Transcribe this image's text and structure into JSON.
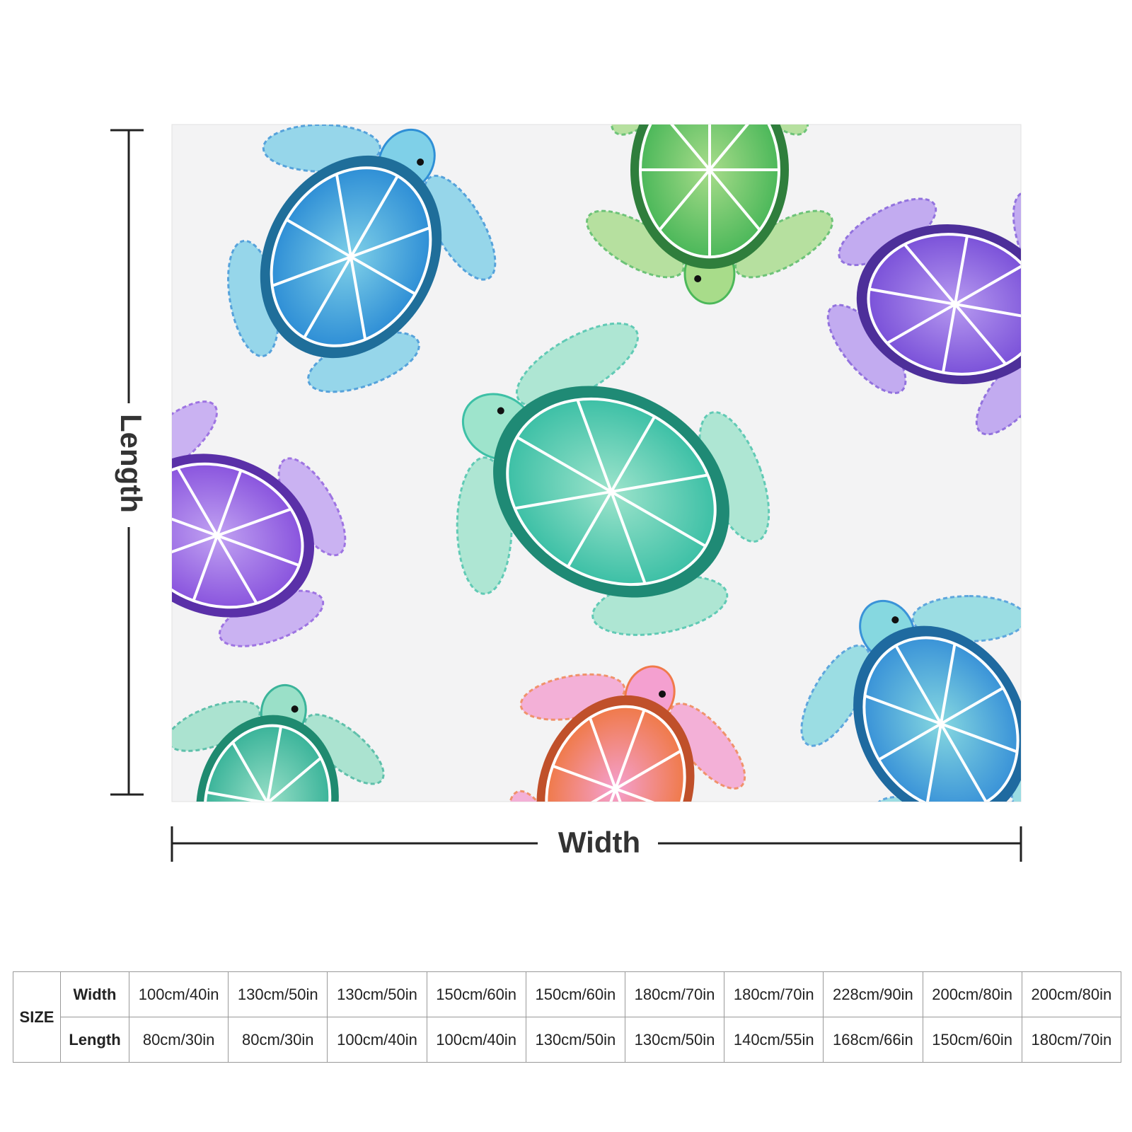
{
  "dimensions": {
    "length": "Length",
    "width": "Width"
  },
  "size_table": {
    "header": "SIZE",
    "rows": [
      {
        "label": "Width",
        "cells": [
          "100cm/40in",
          "130cm/50in",
          "130cm/50in",
          "150cm/60in",
          "150cm/60in",
          "180cm/70in",
          "180cm/70in",
          "228cm/90in",
          "200cm/80in",
          "200cm/80in"
        ]
      },
      {
        "label": "Length",
        "cells": [
          "80cm/30in",
          "80cm/30in",
          "100cm/40in",
          "100cm/40in",
          "130cm/50in",
          "130cm/50in",
          "140cm/55in",
          "168cm/66in",
          "150cm/60in",
          "180cm/70in"
        ]
      }
    ]
  }
}
